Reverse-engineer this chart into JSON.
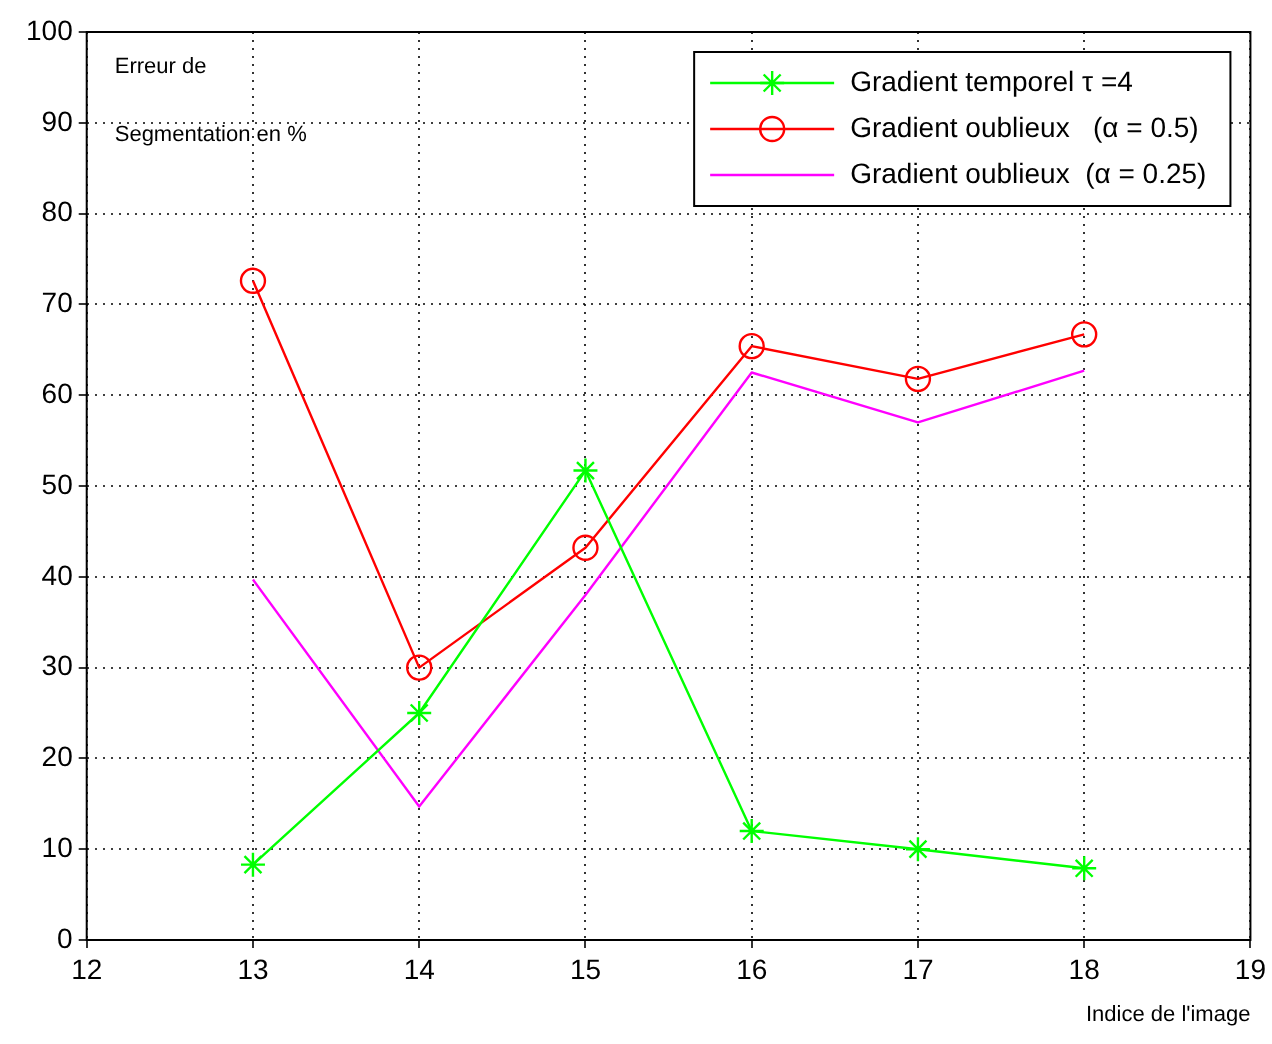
{
  "chart_data": {
    "type": "line",
    "xlabel": "Indice de l'image",
    "annotations": [
      "Erreur de",
      "Segmentation en %"
    ],
    "xlim": [
      12,
      19
    ],
    "xticks": [
      12,
      13,
      14,
      15,
      16,
      17,
      18,
      19
    ],
    "ylim": [
      0,
      100
    ],
    "yticks": [
      0,
      10,
      20,
      30,
      40,
      50,
      60,
      70,
      80,
      90,
      100
    ],
    "grid": true,
    "legend": "top right",
    "line_style": "solid",
    "x": [
      13,
      14,
      15,
      16,
      17,
      18
    ],
    "series": [
      {
        "name": "Gradient temporel τ =4",
        "color": "#00ff00",
        "marker": "cross",
        "values": [
          8.3,
          25,
          51.7,
          12,
          10,
          7.9
        ]
      },
      {
        "name": "Gradient oublieux   (α = 0.5)",
        "color": "#ff0000",
        "marker": "circle",
        "values": [
          72.6,
          30,
          43.2,
          65.4,
          61.8,
          66.7
        ]
      },
      {
        "name": "Gradient oublieux  (α = 0.25)",
        "color": "#ff00ff",
        "marker": "none",
        "values": [
          39.7,
          14.7,
          38,
          62.5,
          57,
          62.7
        ]
      }
    ]
  }
}
